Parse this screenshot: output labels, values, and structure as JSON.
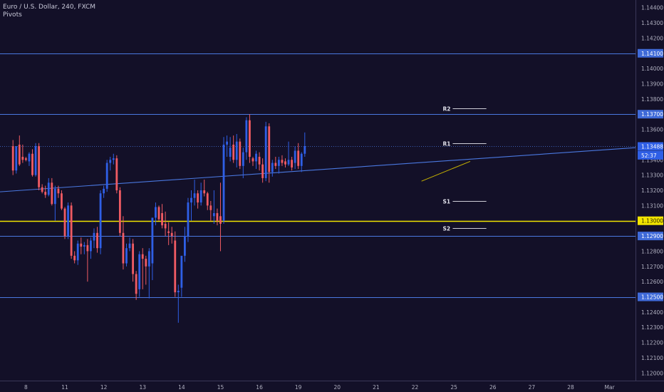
{
  "chart_data": {
    "type": "candlestick",
    "title": "Euro / U.S. Dollar, 240, FXCM",
    "subtitle": "Pivots",
    "colors": {
      "background": "#131028",
      "up": "#2f5fe6",
      "down": "#f05b63",
      "hline": "#4a78e0",
      "support": "#f2e400",
      "trendline": "#4a78e0",
      "pivot": "#cfcfd8"
    },
    "ylim": [
      1.1195,
      1.1445
    ],
    "y_ticks": [
      "1.14400",
      "1.14300",
      "1.14200",
      "1.14000",
      "1.13900",
      "1.13800",
      "1.13600",
      "1.13400",
      "1.13300",
      "1.13200",
      "1.13100",
      "1.12800",
      "1.12700",
      "1.12600",
      "1.12400",
      "1.12300",
      "1.12200",
      "1.12100",
      "1.12000"
    ],
    "x_ticks": [
      {
        "label": "8",
        "x": 4
      },
      {
        "label": "11",
        "x": 16
      },
      {
        "label": "12",
        "x": 28
      },
      {
        "label": "13",
        "x": 40
      },
      {
        "label": "14",
        "x": 52
      },
      {
        "label": "15",
        "x": 64
      },
      {
        "label": "16",
        "x": 76
      },
      {
        "label": "19",
        "x": 88
      },
      {
        "label": "20",
        "x": 100
      },
      {
        "label": "21",
        "x": 112
      },
      {
        "label": "22",
        "x": 124
      },
      {
        "label": "25",
        "x": 136
      },
      {
        "label": "26",
        "x": 148
      },
      {
        "label": "27",
        "x": 160
      },
      {
        "label": "28",
        "x": 172
      },
      {
        "label": "Mar",
        "x": 184
      }
    ],
    "x_range": [
      -4,
      192
    ],
    "horizontal_levels": [
      {
        "value": 1.141,
        "label": "1.14100",
        "kind": "resistance"
      },
      {
        "value": 1.137,
        "label": "1.13700",
        "kind": "resistance"
      },
      {
        "value": 1.13,
        "label": "1.13000",
        "kind": "support"
      },
      {
        "value": 1.129,
        "label": "1.12900",
        "kind": "resistance"
      },
      {
        "value": 1.125,
        "label": "1.12500",
        "kind": "resistance"
      }
    ],
    "price_level": {
      "value": 1.13488,
      "label": "1.13488"
    },
    "countdown": {
      "value": 1.1343,
      "label": "52:37"
    },
    "trendline": {
      "x1": -4,
      "y1": 1.1319,
      "x2": 192,
      "y2": 1.1348
    },
    "small_trendline": {
      "x1": 126,
      "y1": 1.1326,
      "x2": 141,
      "y2": 1.1339
    },
    "pivots": [
      {
        "label": "R2",
        "value": 1.1374,
        "x1": 133,
        "x2": 146
      },
      {
        "label": "R1",
        "value": 1.1351,
        "x1": 133,
        "x2": 146
      },
      {
        "label": "S1",
        "value": 1.1313,
        "x1": 133,
        "x2": 146
      },
      {
        "label": "S2",
        "value": 1.1295,
        "x1": 133,
        "x2": 146
      }
    ],
    "candles": [
      [
        1.1349,
        1.1353,
        1.133,
        1.1333
      ],
      [
        1.1333,
        1.1349,
        1.1331,
        1.1349
      ],
      [
        1.135,
        1.1356,
        1.1336,
        1.1337
      ],
      [
        1.1342,
        1.135,
        1.1338,
        1.134
      ],
      [
        1.1341,
        1.1342,
        1.1339,
        1.134
      ],
      [
        1.1339,
        1.1345,
        1.1336,
        1.1344
      ],
      [
        1.1344,
        1.1347,
        1.1329,
        1.133
      ],
      [
        1.133,
        1.1351,
        1.1329,
        1.1349
      ],
      [
        1.1349,
        1.1351,
        1.132,
        1.1322
      ],
      [
        1.1322,
        1.1324,
        1.1318,
        1.1319
      ],
      [
        1.1319,
        1.1323,
        1.1315,
        1.1317
      ],
      [
        1.1317,
        1.1328,
        1.1316,
        1.1325
      ],
      [
        1.1325,
        1.1328,
        1.131,
        1.1311
      ],
      [
        1.1311,
        1.1323,
        1.13,
        1.1321
      ],
      [
        1.1321,
        1.1323,
        1.1315,
        1.1318
      ],
      [
        1.1318,
        1.132,
        1.1307,
        1.1308
      ],
      [
        1.1308,
        1.1309,
        1.1288,
        1.129
      ],
      [
        1.129,
        1.1312,
        1.1288,
        1.131
      ],
      [
        1.131,
        1.1312,
        1.1275,
        1.1277
      ],
      [
        1.1277,
        1.128,
        1.1272,
        1.1274
      ],
      [
        1.1274,
        1.1287,
        1.1271,
        1.1285
      ],
      [
        1.1285,
        1.1289,
        1.1278,
        1.1283
      ],
      [
        1.1283,
        1.1286,
        1.1278,
        1.1284
      ],
      [
        1.1284,
        1.1288,
        1.126,
        1.128
      ],
      [
        1.128,
        1.1289,
        1.1275,
        1.1287
      ],
      [
        1.1287,
        1.1295,
        1.1282,
        1.1292
      ],
      [
        1.1292,
        1.1296,
        1.1279,
        1.1282
      ],
      [
        1.1282,
        1.132,
        1.1278,
        1.1318
      ],
      [
        1.1318,
        1.1323,
        1.1315,
        1.1321
      ],
      [
        1.1321,
        1.134,
        1.1319,
        1.1338
      ],
      [
        1.1338,
        1.1342,
        1.1333,
        1.134
      ],
      [
        1.134,
        1.1344,
        1.1337,
        1.1341
      ],
      [
        1.1341,
        1.1343,
        1.1318,
        1.132
      ],
      [
        1.132,
        1.1322,
        1.129,
        1.1292
      ],
      [
        1.1292,
        1.1303,
        1.1268,
        1.1272
      ],
      [
        1.1272,
        1.1285,
        1.127,
        1.1282
      ],
      [
        1.1282,
        1.1289,
        1.128,
        1.1285
      ],
      [
        1.1285,
        1.1288,
        1.126,
        1.1265
      ],
      [
        1.1265,
        1.1267,
        1.1248,
        1.1252
      ],
      [
        1.1255,
        1.128,
        1.125,
        1.1278
      ],
      [
        1.1278,
        1.1282,
        1.1255,
        1.1275
      ],
      [
        1.1275,
        1.1277,
        1.1258,
        1.127
      ],
      [
        1.127,
        1.1282,
        1.1249,
        1.128
      ],
      [
        1.1272,
        1.13,
        1.1261,
        1.1302
      ],
      [
        1.1302,
        1.1312,
        1.1297,
        1.1309
      ],
      [
        1.1309,
        1.131,
        1.13,
        1.1301
      ],
      [
        1.1305,
        1.1311,
        1.1295,
        1.1297
      ],
      [
        1.1298,
        1.1306,
        1.129,
        1.1295
      ],
      [
        1.1293,
        1.1299,
        1.1284,
        1.1292
      ],
      [
        1.1292,
        1.1296,
        1.1285,
        1.129
      ],
      [
        1.1287,
        1.1293,
        1.125,
        1.1253
      ],
      [
        1.1253,
        1.1258,
        1.1233,
        1.1254
      ],
      [
        1.1256,
        1.1276,
        1.125,
        1.1277
      ],
      [
        1.1277,
        1.1296,
        1.1273,
        1.129
      ],
      [
        1.129,
        1.1315,
        1.1286,
        1.1312
      ],
      [
        1.1312,
        1.132,
        1.13,
        1.1315
      ],
      [
        1.1315,
        1.1327,
        1.131,
        1.1318
      ],
      [
        1.1318,
        1.132,
        1.1308,
        1.1312
      ],
      [
        1.1312,
        1.1325,
        1.131,
        1.132
      ],
      [
        1.132,
        1.1327,
        1.1316,
        1.1318
      ],
      [
        1.1318,
        1.1319,
        1.1307,
        1.131
      ],
      [
        1.131,
        1.1313,
        1.13,
        1.1307
      ],
      [
        1.1303,
        1.132,
        1.1298,
        1.1305
      ],
      [
        1.1305,
        1.1308,
        1.1297,
        1.13
      ],
      [
        1.1303,
        1.1325,
        1.128,
        1.1298
      ],
      [
        1.13,
        1.1355,
        1.1298,
        1.135
      ],
      [
        1.135,
        1.1356,
        1.1342,
        1.1352
      ],
      [
        1.1342,
        1.1355,
        1.1339,
        1.1348
      ],
      [
        1.135,
        1.1356,
        1.1338,
        1.134
      ],
      [
        1.134,
        1.1357,
        1.1335,
        1.1352
      ],
      [
        1.1352,
        1.1354,
        1.1334,
        1.1336
      ],
      [
        1.1336,
        1.1348,
        1.1328,
        1.1345
      ],
      [
        1.1345,
        1.1368,
        1.134,
        1.1366
      ],
      [
        1.1366,
        1.137,
        1.1338,
        1.1342
      ],
      [
        1.1341,
        1.1342,
        1.1336,
        1.1339
      ],
      [
        1.1339,
        1.1346,
        1.1334,
        1.1344
      ],
      [
        1.1342,
        1.1345,
        1.1333,
        1.1337
      ],
      [
        1.1337,
        1.1341,
        1.1325,
        1.1328
      ],
      [
        1.1328,
        1.1365,
        1.1326,
        1.1362
      ],
      [
        1.1362,
        1.1364,
        1.1325,
        1.1332
      ],
      [
        1.1332,
        1.134,
        1.1329,
        1.1338
      ],
      [
        1.1338,
        1.1342,
        1.1334,
        1.1336
      ],
      [
        1.1336,
        1.1342,
        1.1331,
        1.134
      ],
      [
        1.134,
        1.1343,
        1.1336,
        1.1338
      ],
      [
        1.1339,
        1.1341,
        1.1335,
        1.1337
      ],
      [
        1.1337,
        1.1352,
        1.1336,
        1.134
      ],
      [
        1.134,
        1.1342,
        1.1333,
        1.1335
      ],
      [
        1.1338,
        1.1349,
        1.1334,
        1.1346
      ],
      [
        1.1346,
        1.1351,
        1.1334,
        1.1336
      ],
      [
        1.1336,
        1.1345,
        1.1332,
        1.1344
      ],
      [
        1.1344,
        1.1358,
        1.1342,
        1.1349
      ]
    ]
  }
}
